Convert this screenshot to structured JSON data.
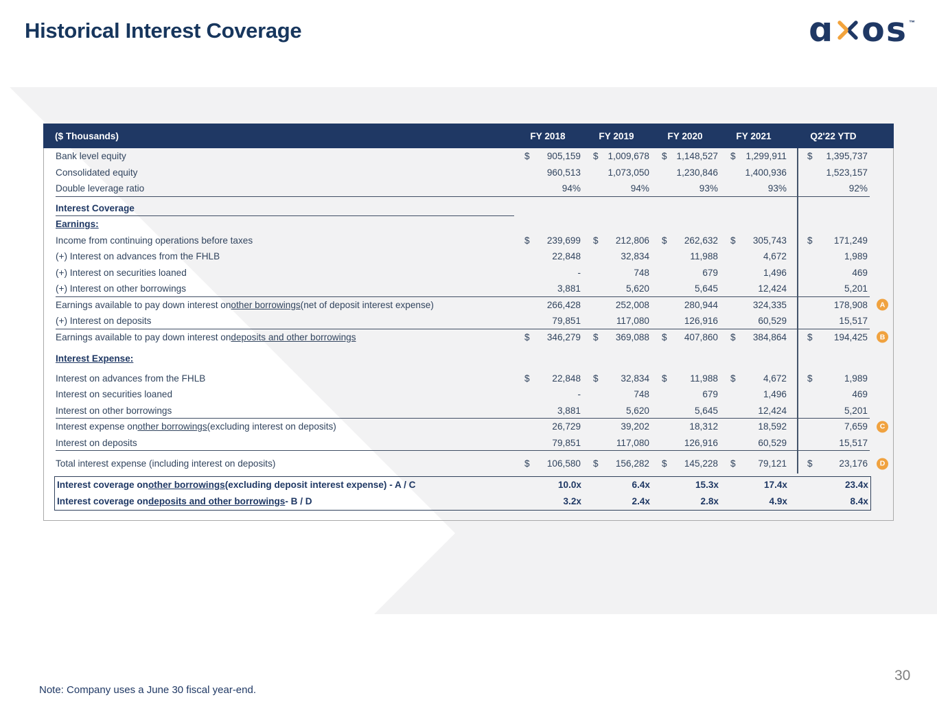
{
  "slide": {
    "title": "Historical Interest Coverage",
    "note": "Note: Company uses a June 30 fiscal year-end.",
    "page_number": "30"
  },
  "logo": {
    "letter_a": "ɑ",
    "letters_os": "os",
    "trademark": "™",
    "navy": "#1f3864",
    "orange": "#f2a33c"
  },
  "colors": {
    "header_bg": "#1f3864",
    "body_text": "#31445e",
    "accent_orange": "#f0a23f",
    "band_gray": "#f2f2f3",
    "rule": "#3f4d63"
  },
  "table": {
    "unit_label": "($ Thousands)",
    "columns": [
      "FY 2018",
      "FY 2019",
      "FY 2020",
      "FY 2021",
      "Q2'22 YTD"
    ],
    "rows": [
      {
        "label": [
          {
            "t": "Bank level equity"
          }
        ],
        "dollar": true,
        "values": [
          "905,159",
          "1,009,678",
          "1,148,527",
          "1,299,911",
          "1,395,737"
        ]
      },
      {
        "label": [
          {
            "t": "Consolidated equity"
          }
        ],
        "values": [
          "960,513",
          "1,073,050",
          "1,230,846",
          "1,400,936",
          "1,523,157"
        ]
      },
      {
        "label": [
          {
            "t": "Double leverage ratio"
          }
        ],
        "rule": "full",
        "values": [
          "94%",
          "94%",
          "93%",
          "93%",
          "92%"
        ]
      },
      {
        "label": [
          {
            "t": "Interest Coverage"
          }
        ],
        "style": "heading",
        "space_before": 5
      },
      {
        "label": [
          {
            "t": "Earnings:"
          }
        ],
        "style": "subheading"
      },
      {
        "label": [
          {
            "t": "Income from continuing operations before taxes"
          }
        ],
        "dollar": true,
        "values": [
          "239,699",
          "212,806",
          "262,632",
          "305,743",
          "171,249"
        ]
      },
      {
        "label": [
          {
            "t": "(+) Interest on advances from the FHLB"
          }
        ],
        "values": [
          "22,848",
          "32,834",
          "11,988",
          "4,672",
          "1,989"
        ]
      },
      {
        "label": [
          {
            "t": "(+) Interest on securities loaned"
          }
        ],
        "values": [
          "-",
          "748",
          "679",
          "1,496",
          "469"
        ]
      },
      {
        "label": [
          {
            "t": "(+) Interest on other borrowings"
          }
        ],
        "rule": "full",
        "values": [
          "3,881",
          "5,620",
          "5,645",
          "12,424",
          "5,201"
        ]
      },
      {
        "label": [
          {
            "t": "Earnings available to pay down interest on "
          },
          {
            "t": "other borrowings",
            "u": true
          },
          {
            "t": " (net of deposit interest expense)"
          }
        ],
        "badge": "A",
        "values": [
          "266,428",
          "252,008",
          "280,944",
          "324,335",
          "178,908"
        ]
      },
      {
        "label": [
          {
            "t": "(+) Interest on deposits"
          }
        ],
        "rule": "full",
        "values": [
          "79,851",
          "117,080",
          "126,916",
          "60,529",
          "15,517"
        ]
      },
      {
        "label": [
          {
            "t": "Earnings available to pay down interest on "
          },
          {
            "t": "deposits and other borrowings",
            "u": true
          }
        ],
        "dollar": true,
        "badge": "B",
        "values": [
          "346,279",
          "369,088",
          "407,860",
          "384,864",
          "194,425"
        ]
      },
      {
        "label": [
          {
            "t": "Interest Expense:"
          }
        ],
        "style": "subheading",
        "space_before": 8
      },
      {
        "label": [
          {
            "t": "Interest on advances from the FHLB"
          }
        ],
        "dollar": true,
        "space_before": 5,
        "values": [
          "22,848",
          "32,834",
          "11,988",
          "4,672",
          "1,989"
        ]
      },
      {
        "label": [
          {
            "t": "Interest on securities loaned"
          }
        ],
        "values": [
          "-",
          "748",
          "679",
          "1,496",
          "469"
        ]
      },
      {
        "label": [
          {
            "t": "Interest on other borrowings"
          }
        ],
        "rule": "full",
        "values": [
          "3,881",
          "5,620",
          "5,645",
          "12,424",
          "5,201"
        ]
      },
      {
        "label": [
          {
            "t": "Interest expense on "
          },
          {
            "t": "other borrowings",
            "u": true
          },
          {
            "t": " (excluding interest on deposits)"
          }
        ],
        "badge": "C",
        "values": [
          "26,729",
          "39,202",
          "18,312",
          "18,592",
          "7,659"
        ]
      },
      {
        "label": [
          {
            "t": "Interest on deposits"
          }
        ],
        "rule": "full",
        "values": [
          "79,851",
          "117,080",
          "126,916",
          "60,529",
          "15,517"
        ]
      },
      {
        "label": [
          {
            "t": "Total interest expense (including interest on deposits)"
          }
        ],
        "dollar": true,
        "badge": "D",
        "space_before": 7,
        "values": [
          "106,580",
          "156,282",
          "145,228",
          "79,121",
          "23,176"
        ]
      }
    ],
    "box_rows": [
      {
        "label": [
          {
            "t": "Interest coverage on "
          },
          {
            "t": "other borrowings",
            "u": true
          },
          {
            "t": " (excluding deposit interest expense) - A / C"
          }
        ],
        "values": [
          "10.0x",
          "6.4x",
          "15.3x",
          "17.4x",
          "23.4x"
        ]
      },
      {
        "label": [
          {
            "t": "Interest coverage on "
          },
          {
            "t": "deposits and other borrowings ",
            "u": true
          },
          {
            "t": " - B / D"
          }
        ],
        "values": [
          "3.2x",
          "2.4x",
          "2.8x",
          "4.9x",
          "8.4x"
        ]
      }
    ]
  }
}
